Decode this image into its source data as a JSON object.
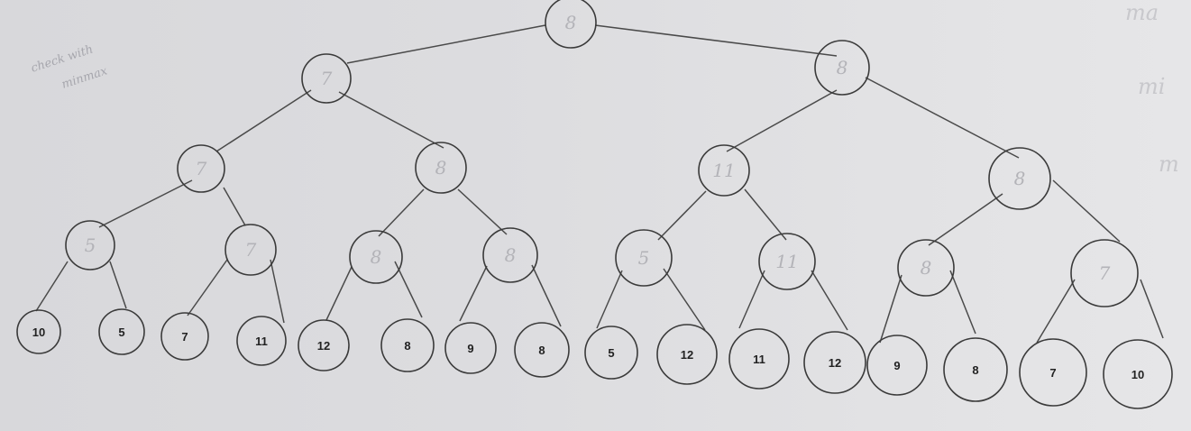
{
  "notes": {
    "line1": "check with",
    "line2": "minmax",
    "margin_top": "ma",
    "margin_mid": "mi",
    "margin_low": "m"
  },
  "tree": {
    "root": "8",
    "level1": [
      "7",
      "8"
    ],
    "level2": [
      "7",
      "8",
      "11",
      "8"
    ],
    "level3": [
      "5",
      "7",
      "8",
      "8",
      "5",
      "11",
      "8",
      "7"
    ],
    "leaves": [
      "10",
      "5",
      "7",
      "11",
      "12",
      "8",
      "9",
      "8",
      "5",
      "12",
      "11",
      "12",
      "9",
      "8",
      "7",
      "10"
    ]
  }
}
